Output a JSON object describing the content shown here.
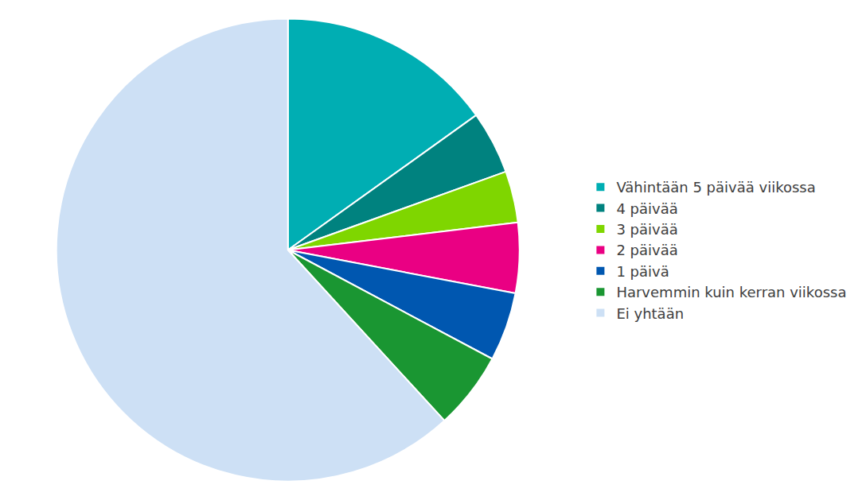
{
  "chart_data": {
    "type": "pie",
    "categories": [
      "Vähintään 5 päivää viikossa",
      "4 päivää",
      "3 päivää",
      "2 päivää",
      "1 päivä",
      "Harvemmin kuin kerran viikossa",
      "Ei yhtään"
    ],
    "values": [
      15.1,
      4.4,
      3.6,
      4.9,
      4.8,
      5.4,
      61.8
    ],
    "colors": [
      "#00aeb3",
      "#00827f",
      "#7fd600",
      "#ea0083",
      "#0057b0",
      "#1a9632",
      "#cde0f5"
    ],
    "legend": "right",
    "data_labels": false
  }
}
